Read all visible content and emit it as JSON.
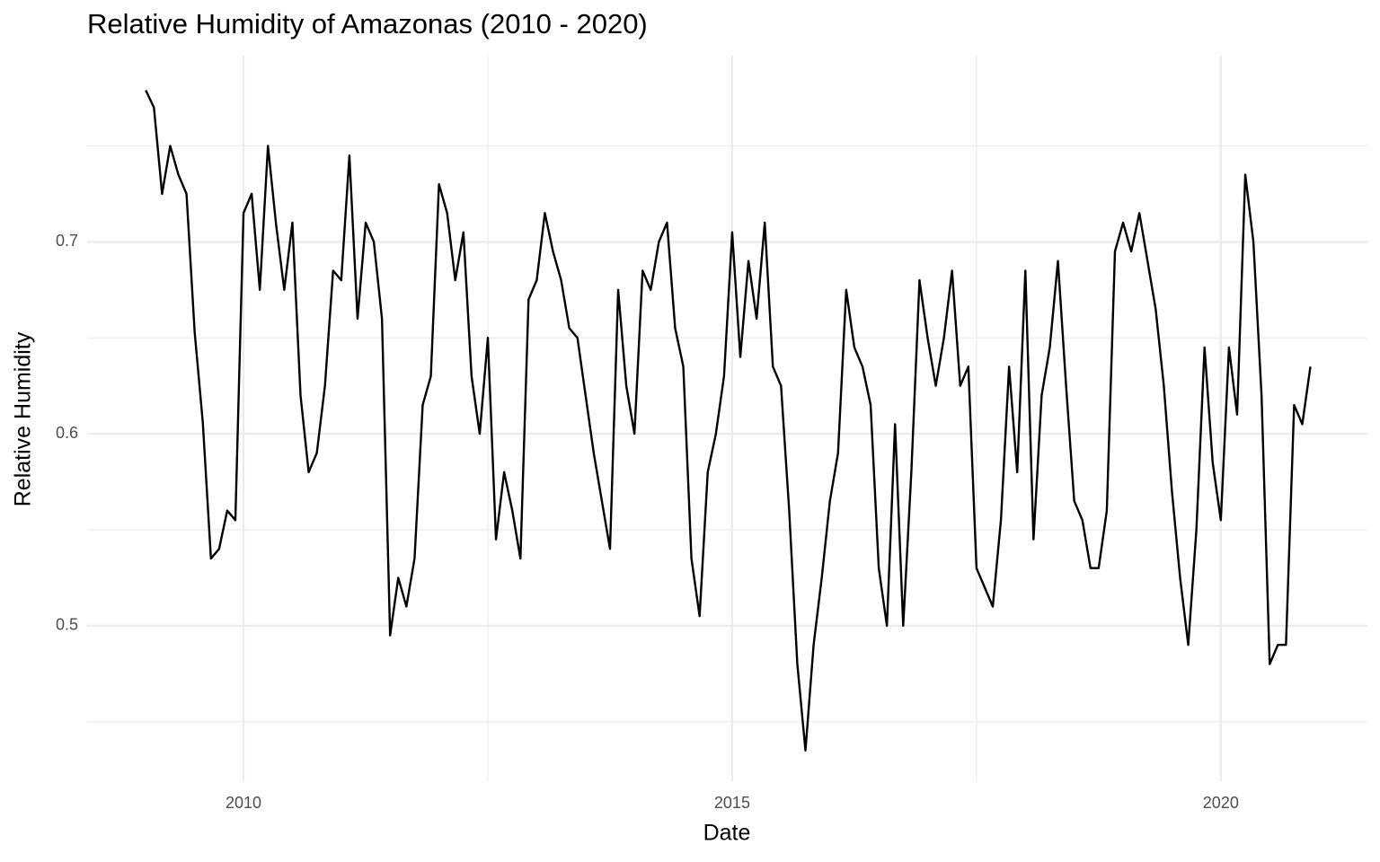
{
  "chart_data": {
    "type": "line",
    "title": "Relative Humidity of Amazonas (2010 - 2020)",
    "x_label": "Date",
    "y_label": "Relative Humidity",
    "x": [
      "2009-01",
      "2009-02",
      "2009-03",
      "2009-04",
      "2009-05",
      "2009-06",
      "2009-07",
      "2009-08",
      "2009-09",
      "2009-10",
      "2009-11",
      "2009-12",
      "2010-01",
      "2010-02",
      "2010-03",
      "2010-04",
      "2010-05",
      "2010-06",
      "2010-07",
      "2010-08",
      "2010-09",
      "2010-10",
      "2010-11",
      "2010-12",
      "2011-01",
      "2011-02",
      "2011-03",
      "2011-04",
      "2011-05",
      "2011-06",
      "2011-07",
      "2011-08",
      "2011-09",
      "2011-10",
      "2011-11",
      "2011-12",
      "2012-01",
      "2012-02",
      "2012-03",
      "2012-04",
      "2012-05",
      "2012-06",
      "2012-07",
      "2012-08",
      "2012-09",
      "2012-10",
      "2012-11",
      "2012-12",
      "2013-01",
      "2013-02",
      "2013-03",
      "2013-04",
      "2013-05",
      "2013-06",
      "2013-07",
      "2013-08",
      "2013-09",
      "2013-10",
      "2013-11",
      "2013-12",
      "2014-01",
      "2014-02",
      "2014-03",
      "2014-04",
      "2014-05",
      "2014-06",
      "2014-07",
      "2014-08",
      "2014-09",
      "2014-10",
      "2014-11",
      "2014-12",
      "2015-01",
      "2015-02",
      "2015-03",
      "2015-04",
      "2015-05",
      "2015-06",
      "2015-07",
      "2015-08",
      "2015-09",
      "2015-10",
      "2015-11",
      "2015-12",
      "2016-01",
      "2016-02",
      "2016-03",
      "2016-04",
      "2016-05",
      "2016-06",
      "2016-07",
      "2016-08",
      "2016-09",
      "2016-10",
      "2016-11",
      "2016-12",
      "2017-01",
      "2017-02",
      "2017-03",
      "2017-04",
      "2017-05",
      "2017-06",
      "2017-07",
      "2017-08",
      "2017-09",
      "2017-10",
      "2017-11",
      "2017-12",
      "2018-01",
      "2018-02",
      "2018-03",
      "2018-04",
      "2018-05",
      "2018-06",
      "2018-07",
      "2018-08",
      "2018-09",
      "2018-10",
      "2018-11",
      "2018-12",
      "2019-01",
      "2019-02",
      "2019-03",
      "2019-04",
      "2019-05",
      "2019-06",
      "2019-07",
      "2019-08",
      "2019-09",
      "2019-10",
      "2019-11",
      "2019-12",
      "2020-01",
      "2020-02",
      "2020-03",
      "2020-04",
      "2020-05",
      "2020-06",
      "2020-07",
      "2020-08",
      "2020-09",
      "2020-10",
      "2020-11",
      "2020-12"
    ],
    "series": [
      {
        "name": "Relative Humidity",
        "color": "#000000",
        "values": [
          0.779,
          0.77,
          0.725,
          0.75,
          0.735,
          0.725,
          0.653,
          0.606,
          0.535,
          0.54,
          0.56,
          0.555,
          0.715,
          0.725,
          0.675,
          0.75,
          0.709,
          0.675,
          0.71,
          0.62,
          0.58,
          0.59,
          0.625,
          0.685,
          0.68,
          0.745,
          0.66,
          0.71,
          0.7,
          0.66,
          0.495,
          0.525,
          0.51,
          0.535,
          0.615,
          0.63,
          0.73,
          0.715,
          0.68,
          0.705,
          0.63,
          0.6,
          0.65,
          0.545,
          0.58,
          0.56,
          0.535,
          0.67,
          0.68,
          0.715,
          0.695,
          0.68,
          0.655,
          0.65,
          0.62,
          0.59,
          0.565,
          0.54,
          0.675,
          0.625,
          0.6,
          0.685,
          0.675,
          0.7,
          0.71,
          0.655,
          0.635,
          0.535,
          0.505,
          0.58,
          0.6,
          0.63,
          0.705,
          0.64,
          0.69,
          0.66,
          0.71,
          0.635,
          0.625,
          0.56,
          0.48,
          0.435,
          0.49,
          0.525,
          0.565,
          0.59,
          0.675,
          0.645,
          0.635,
          0.615,
          0.53,
          0.5,
          0.605,
          0.5,
          0.58,
          0.68,
          0.65,
          0.625,
          0.65,
          0.685,
          0.625,
          0.635,
          0.53,
          0.52,
          0.51,
          0.555,
          0.635,
          0.58,
          0.685,
          0.545,
          0.62,
          0.645,
          0.69,
          0.625,
          0.565,
          0.555,
          0.53,
          0.53,
          0.56,
          0.695,
          0.71,
          0.695,
          0.715,
          0.69,
          0.665,
          0.625,
          0.57,
          0.525,
          0.49,
          0.55,
          0.645,
          0.585,
          0.555,
          0.645,
          0.61,
          0.735,
          0.7,
          0.62,
          0.48,
          0.49,
          0.49,
          0.615,
          0.605,
          0.635
        ]
      }
    ],
    "xlim": [
      2008.4,
      2021.5
    ],
    "xticks": [
      2010,
      2015,
      2020
    ],
    "ylim": [
      0.419,
      0.797
    ],
    "yticks": [
      0.5,
      0.6,
      0.7
    ],
    "grid": true
  }
}
